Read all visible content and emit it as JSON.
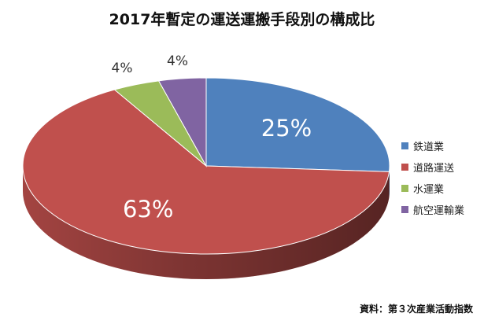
{
  "chart_data": {
    "type": "pie",
    "title": "2017年暫定の運送運搬手段別の構成比",
    "categories": [
      "鉄道業",
      "道路運送",
      "水運業",
      "航空運輸業"
    ],
    "values": [
      25,
      63,
      4,
      4
    ],
    "labels": [
      "25%",
      "63%",
      "4%",
      "4%"
    ],
    "colors": [
      "#4F81BD",
      "#C0504D",
      "#9BBB59",
      "#8064A2"
    ],
    "legend_position": "right",
    "source": "資料：第３次産業活動指数"
  }
}
